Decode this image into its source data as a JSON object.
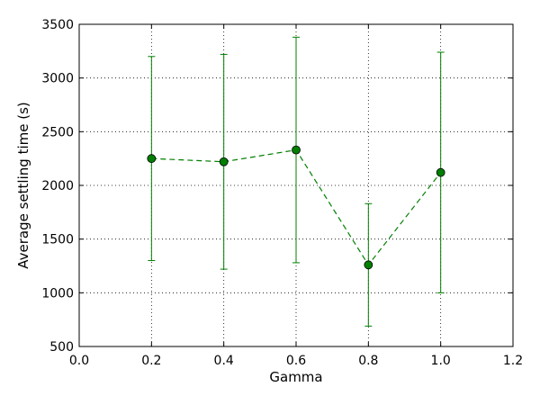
{
  "chart_data": {
    "type": "line",
    "xlabel": "Gamma",
    "ylabel": "Average settling time (s)",
    "xlim": [
      0.0,
      1.2
    ],
    "ylim": [
      500,
      3500
    ],
    "xticks": [
      0.0,
      0.2,
      0.4,
      0.6,
      0.8,
      1.0,
      1.2
    ],
    "xtick_labels": [
      "0.0",
      "0.2",
      "0.4",
      "0.6",
      "0.8",
      "1.0",
      "1.2"
    ],
    "yticks": [
      500,
      1000,
      1500,
      2000,
      2500,
      3000,
      3500
    ],
    "ytick_labels": [
      "500",
      "1000",
      "1500",
      "2000",
      "2500",
      "3000",
      "3500"
    ],
    "grid": true,
    "series": [
      {
        "color": "#007f00",
        "line_style": "dashed",
        "marker": "circle",
        "x": [
          0.2,
          0.4,
          0.6,
          0.8,
          1.0
        ],
        "y": [
          2250,
          2220,
          2330,
          1260,
          2120
        ],
        "error_low": [
          1300,
          1220,
          1280,
          690,
          1000
        ],
        "error_high": [
          3200,
          3220,
          3380,
          1830,
          3240
        ]
      }
    ]
  }
}
